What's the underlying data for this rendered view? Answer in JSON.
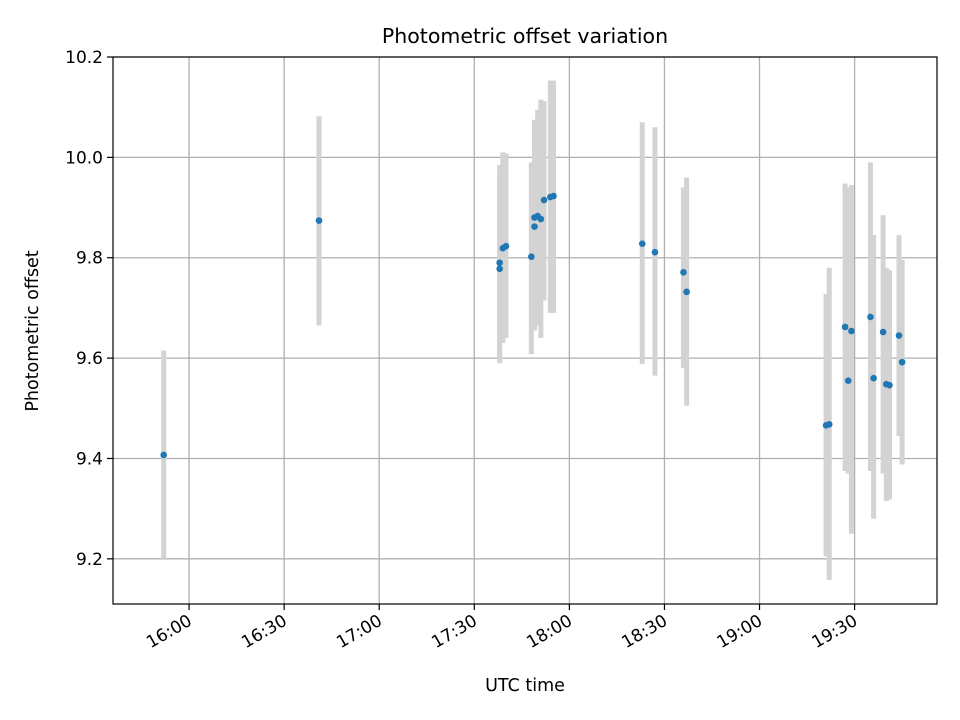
{
  "chart_data": {
    "type": "scatter",
    "title": "Photometric offset variation",
    "xlabel": "UTC time",
    "ylabel": "Photometric offset",
    "x_ticks": [
      "16:00",
      "16:30",
      "17:00",
      "17:30",
      "18:00",
      "18:30",
      "19:00",
      "19:30"
    ],
    "x_tick_minutes": [
      960,
      990,
      1020,
      1050,
      1080,
      1110,
      1140,
      1170
    ],
    "xlim_minutes": [
      936,
      1196
    ],
    "ylim": [
      9.11,
      10.2
    ],
    "y_ticks": [
      9.2,
      9.4,
      9.6,
      9.8,
      10.0,
      10.2
    ],
    "y_tick_labels": [
      "9.2",
      "9.4",
      "9.6",
      "9.8",
      "10.0",
      "10.2"
    ],
    "grid": true,
    "colors": {
      "points": "#1f77b4",
      "errorbars": "#d3d3d3",
      "grid": "#b0b0b0"
    },
    "points": [
      {
        "time": "15:52",
        "y": 9.407,
        "ylo": 9.2,
        "yhi": 9.615
      },
      {
        "time": "16:41",
        "y": 9.874,
        "ylo": 9.665,
        "yhi": 10.082
      },
      {
        "time": "17:38",
        "y": 9.778,
        "ylo": 9.59,
        "yhi": 9.965
      },
      {
        "time": "17:38",
        "y": 9.79,
        "ylo": 9.59,
        "yhi": 9.985
      },
      {
        "time": "17:39",
        "y": 9.819,
        "ylo": 9.63,
        "yhi": 10.01
      },
      {
        "time": "17:40",
        "y": 9.823,
        "ylo": 9.64,
        "yhi": 10.008
      },
      {
        "time": "17:48",
        "y": 9.802,
        "ylo": 9.608,
        "yhi": 9.99
      },
      {
        "time": "17:49",
        "y": 9.88,
        "ylo": 9.655,
        "yhi": 10.075
      },
      {
        "time": "17:49",
        "y": 9.862,
        "ylo": 9.67,
        "yhi": 10.055
      },
      {
        "time": "17:50",
        "y": 9.883,
        "ylo": 9.665,
        "yhi": 10.095
      },
      {
        "time": "17:51",
        "y": 9.877,
        "ylo": 9.64,
        "yhi": 10.115
      },
      {
        "time": "17:52",
        "y": 9.915,
        "ylo": 9.715,
        "yhi": 10.112
      },
      {
        "time": "17:54",
        "y": 9.921,
        "ylo": 9.69,
        "yhi": 10.153
      },
      {
        "time": "17:55",
        "y": 9.923,
        "ylo": 9.69,
        "yhi": 10.153
      },
      {
        "time": "18:23",
        "y": 9.828,
        "ylo": 9.588,
        "yhi": 10.07
      },
      {
        "time": "18:27",
        "y": 9.811,
        "ylo": 9.565,
        "yhi": 10.06
      },
      {
        "time": "18:36",
        "y": 9.771,
        "ylo": 9.58,
        "yhi": 9.94
      },
      {
        "time": "18:37",
        "y": 9.732,
        "ylo": 9.505,
        "yhi": 9.96
      },
      {
        "time": "19:21",
        "y": 9.466,
        "ylo": 9.205,
        "yhi": 9.728
      },
      {
        "time": "19:22",
        "y": 9.468,
        "ylo": 9.158,
        "yhi": 9.78
      },
      {
        "time": "19:27",
        "y": 9.662,
        "ylo": 9.375,
        "yhi": 9.948
      },
      {
        "time": "19:28",
        "y": 9.555,
        "ylo": 9.37,
        "yhi": 9.94
      },
      {
        "time": "19:29",
        "y": 9.654,
        "ylo": 9.25,
        "yhi": 9.945
      },
      {
        "time": "19:35",
        "y": 9.682,
        "ylo": 9.375,
        "yhi": 9.99
      },
      {
        "time": "19:36",
        "y": 9.56,
        "ylo": 9.28,
        "yhi": 9.845
      },
      {
        "time": "19:39",
        "y": 9.652,
        "ylo": 9.37,
        "yhi": 9.885
      },
      {
        "time": "19:40",
        "y": 9.548,
        "ylo": 9.315,
        "yhi": 9.78
      },
      {
        "time": "19:41",
        "y": 9.546,
        "ylo": 9.318,
        "yhi": 9.775
      },
      {
        "time": "19:44",
        "y": 9.645,
        "ylo": 9.445,
        "yhi": 9.845
      },
      {
        "time": "19:45",
        "y": 9.592,
        "ylo": 9.388,
        "yhi": 9.796
      }
    ]
  }
}
